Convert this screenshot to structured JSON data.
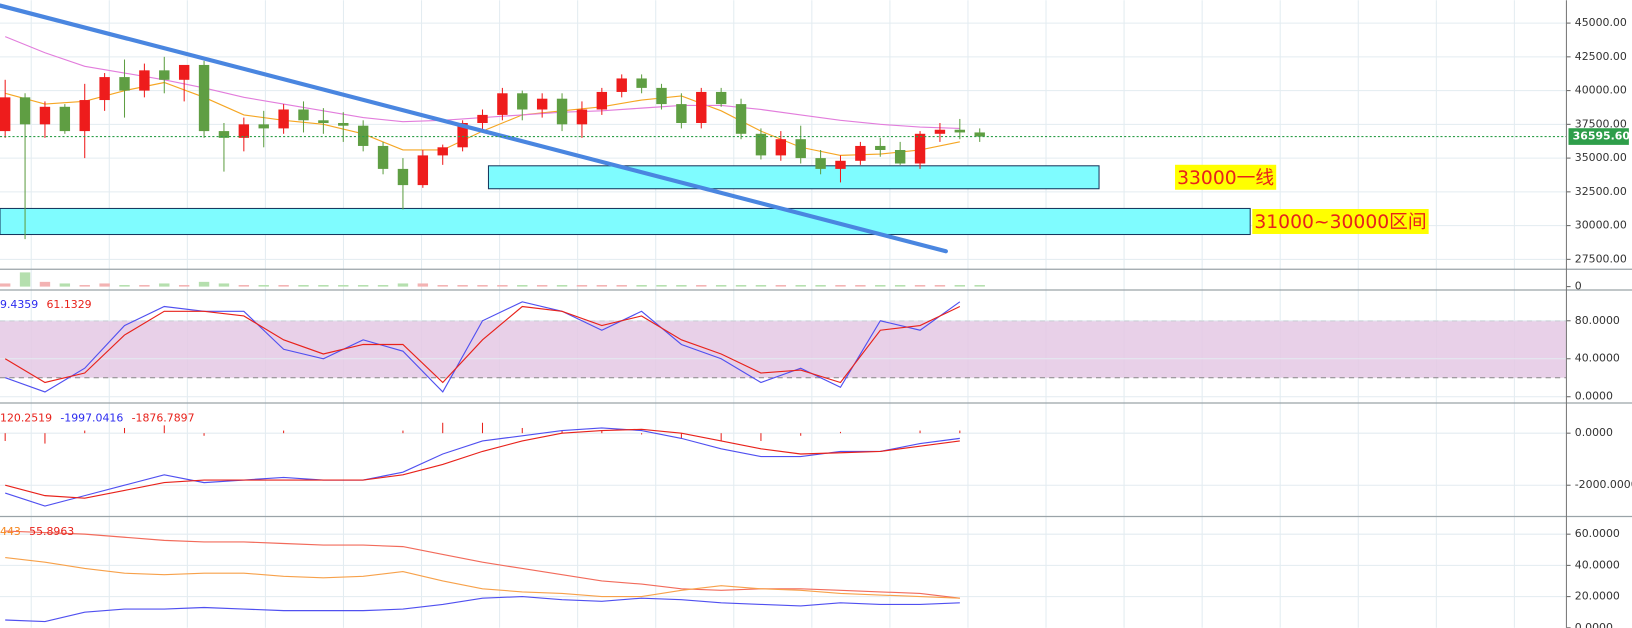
{
  "chart_data": [
    {
      "type": "candlestick",
      "xlim": [
        -0.26,
        78.5
      ],
      "ylim": [
        26806,
        46696
      ],
      "yticks": [
        {
          "value": 27500,
          "label": "27500.00"
        },
        {
          "value": 30000,
          "label": "30000.00"
        },
        {
          "value": 32500,
          "label": "32500.00"
        },
        {
          "value": 35000,
          "label": "35000.00"
        },
        {
          "value": 37500,
          "label": "37500.00"
        },
        {
          "value": 40000,
          "label": "40000.00"
        },
        {
          "value": 42500,
          "label": "42500.00"
        },
        {
          "value": 45000,
          "label": "45000.00"
        }
      ],
      "up_color": "#ee1c1c",
      "down_color": "#5f9e43",
      "candles": [
        [
          37000,
          40800,
          36500,
          39500
        ],
        [
          39500,
          39800,
          29000,
          37500
        ],
        [
          37500,
          39200,
          36500,
          38800
        ],
        [
          38800,
          39000,
          36800,
          37000
        ],
        [
          37000,
          40500,
          35000,
          39300
        ],
        [
          39300,
          41300,
          38500,
          41000
        ],
        [
          41000,
          42300,
          38000,
          40000
        ],
        [
          40000,
          42000,
          39500,
          41500
        ],
        [
          41500,
          42500,
          39800,
          40800
        ],
        [
          40800,
          41800,
          39200,
          41900
        ],
        [
          41900,
          42200,
          36500,
          37000
        ],
        [
          37000,
          37600,
          34000,
          36500
        ],
        [
          36500,
          38000,
          35500,
          37500
        ],
        [
          37500,
          38500,
          35800,
          37200
        ],
        [
          37200,
          39000,
          36800,
          38600
        ],
        [
          38600,
          39200,
          36900,
          37800
        ],
        [
          37800,
          38700,
          36800,
          37600
        ],
        [
          37600,
          38400,
          36200,
          37400
        ],
        [
          37400,
          37800,
          35500,
          35900
        ],
        [
          35900,
          36200,
          33800,
          34200
        ],
        [
          34200,
          35000,
          31200,
          33000
        ],
        [
          33000,
          35600,
          32800,
          35200
        ],
        [
          35200,
          36000,
          34500,
          35800
        ],
        [
          35800,
          37800,
          35500,
          37600
        ],
        [
          37600,
          38600,
          37000,
          38200
        ],
        [
          38200,
          40200,
          37800,
          39800
        ],
        [
          39800,
          40000,
          37800,
          38600
        ],
        [
          38600,
          39800,
          38000,
          39400
        ],
        [
          39400,
          39800,
          37000,
          37500
        ],
        [
          37500,
          39200,
          36500,
          38600
        ],
        [
          38600,
          40200,
          38200,
          39900
        ],
        [
          39900,
          41200,
          39500,
          40900
        ],
        [
          40900,
          41200,
          39800,
          40200
        ],
        [
          40200,
          40500,
          38600,
          39000
        ],
        [
          39000,
          39800,
          37200,
          37600
        ],
        [
          37600,
          40200,
          37200,
          39900
        ],
        [
          39900,
          40200,
          38800,
          39000
        ],
        [
          39000,
          39400,
          36400,
          36800
        ],
        [
          36800,
          37200,
          34900,
          35200
        ],
        [
          35200,
          37000,
          34800,
          36400
        ],
        [
          36400,
          37400,
          34600,
          35000
        ],
        [
          35000,
          35600,
          33800,
          34200
        ],
        [
          34200,
          35200,
          33200,
          34800
        ],
        [
          34800,
          36200,
          34500,
          35900
        ],
        [
          35900,
          36500,
          35100,
          35600
        ],
        [
          35600,
          36200,
          34500,
          34600
        ],
        [
          34600,
          37000,
          34200,
          36800
        ],
        [
          36800,
          37600,
          36200,
          37100
        ],
        [
          37100,
          37900,
          36400,
          36900
        ],
        [
          36900,
          37200,
          36200,
          36595.6
        ]
      ],
      "series": [
        {
          "color": "#f5a623",
          "x": [
            0,
            2,
            4,
            6,
            8,
            10,
            12,
            14,
            16,
            18,
            20,
            22,
            24,
            26,
            28,
            30,
            32,
            34,
            36,
            38,
            40,
            42,
            44,
            46,
            48
          ],
          "values": [
            39800,
            39000,
            39200,
            40000,
            40600,
            39500,
            38200,
            37800,
            37500,
            36800,
            35600,
            35600,
            37000,
            38200,
            38500,
            38800,
            39300,
            39600,
            38500,
            37000,
            35800,
            35200,
            35300,
            35600,
            36200
          ]
        },
        {
          "color": "#e27ddc",
          "x": [
            0,
            2,
            4,
            6,
            8,
            10,
            12,
            14,
            16,
            18,
            20,
            22,
            24,
            26,
            28,
            30,
            32,
            34,
            36,
            38,
            40,
            42,
            44,
            46,
            48
          ],
          "values": [
            44000,
            42800,
            41800,
            41300,
            40800,
            40200,
            39500,
            39000,
            38500,
            38000,
            37700,
            37800,
            38000,
            38200,
            38400,
            38500,
            38700,
            38900,
            38900,
            38600,
            38200,
            37800,
            37500,
            37300,
            37200
          ]
        }
      ],
      "last_price": {
        "value": 36595.6,
        "label": "36595.60"
      },
      "last_color": "#2e9e4a",
      "trend_line": {
        "x": [
          -0.26,
          47.3
        ],
        "y": [
          46300,
          28100
        ],
        "color": "#4a86e0"
      },
      "zones": [
        {
          "x": [
            24.3,
            55.0
          ],
          "y": [
            32730,
            34430
          ],
          "label": "33000一线"
        },
        {
          "x": [
            -0.26,
            62.6
          ],
          "y": [
            29340,
            31270
          ],
          "label": "31000~30000区间"
        }
      ],
      "zone_color": "#7ffcff",
      "note_color": "#e8221b",
      "note_bg": "#ffff00"
    },
    {
      "type": "bar",
      "xlim": [
        -0.26,
        78.5
      ],
      "ylim": [
        -1.2,
        10
      ],
      "yticks": [
        0
      ],
      "up_color": "#f3b3b3",
      "down_color": "#b5dfae",
      "values": [
        2,
        9,
        3,
        2,
        1,
        2,
        1,
        1,
        2,
        1,
        3,
        2,
        1,
        1,
        1,
        1,
        1,
        1,
        1,
        1,
        2,
        2,
        1,
        1,
        1,
        1,
        1,
        1,
        1,
        1,
        1,
        1,
        1,
        1,
        1,
        1,
        1,
        1,
        1,
        1,
        1,
        1,
        1,
        1,
        1,
        1,
        1,
        1,
        1,
        1
      ]
    },
    {
      "type": "line",
      "xlim": [
        -0.26,
        78.5
      ],
      "ylim": [
        -5.5,
        111.8
      ],
      "yticks": [
        {
          "value": 0,
          "label": "0.0000"
        },
        {
          "value": 40,
          "label": "40.0000"
        },
        {
          "value": 80,
          "label": "80.0000"
        }
      ],
      "band": [
        20,
        80
      ],
      "band_color": "#e4c8e4",
      "legend": [
        {
          "text": "9.4359",
          "color": "#2b2bef"
        },
        {
          "text": "61.1329",
          "color": "#e8221b"
        }
      ],
      "series": [
        {
          "color": "#5050f0",
          "x": [
            0,
            2,
            4,
            6,
            8,
            10,
            12,
            14,
            16,
            18,
            20,
            22,
            24,
            26,
            28,
            30,
            32,
            34,
            36,
            38,
            40,
            42,
            44,
            46,
            48
          ],
          "values": [
            20,
            5,
            30,
            75,
            95,
            90,
            90,
            50,
            40,
            60,
            48,
            5,
            80,
            100,
            90,
            70,
            90,
            55,
            40,
            15,
            30,
            10,
            80,
            70,
            100
          ]
        },
        {
          "color": "#e8221b",
          "x": [
            0,
            2,
            4,
            6,
            8,
            10,
            12,
            14,
            16,
            18,
            20,
            22,
            24,
            26,
            28,
            30,
            32,
            34,
            36,
            38,
            40,
            42,
            44,
            46,
            48
          ],
          "values": [
            40,
            15,
            25,
            65,
            90,
            90,
            85,
            60,
            45,
            55,
            55,
            15,
            60,
            95,
            90,
            75,
            85,
            60,
            45,
            25,
            28,
            15,
            70,
            75,
            95
          ]
        }
      ]
    },
    {
      "type": "line",
      "xlim": [
        -0.26,
        78.5
      ],
      "ylim": [
        -3160,
        1120
      ],
      "yticks": [
        {
          "value": 0,
          "label": "0.0000"
        },
        {
          "value": -2000,
          "label": "-2000.0000"
        }
      ],
      "legend": [
        {
          "text": "120.2519",
          "color": "#e8221b"
        },
        {
          "text": "-1997.0416",
          "color": "#2b2bef"
        },
        {
          "text": "-1876.7897",
          "color": "#e8221b"
        }
      ],
      "hist_color": "#e8221b",
      "histogram": {
        "x": [
          0,
          2,
          4,
          6,
          8,
          10,
          12,
          14,
          16,
          18,
          20,
          22,
          24,
          26,
          28,
          30,
          32,
          34,
          36,
          38,
          40,
          42,
          44,
          46,
          48
        ],
        "values": [
          -300,
          -400,
          100,
          200,
          300,
          -100,
          0,
          100,
          0,
          0,
          100,
          400,
          400,
          200,
          100,
          100,
          -50,
          -200,
          -300,
          -300,
          -100,
          50,
          0,
          100,
          100
        ]
      },
      "series": [
        {
          "color": "#5050f0",
          "x": [
            0,
            2,
            4,
            6,
            8,
            10,
            12,
            14,
            16,
            18,
            20,
            22,
            24,
            26,
            28,
            30,
            32,
            34,
            36,
            38,
            40,
            42,
            44,
            46,
            48
          ],
          "values": [
            -2300,
            -2800,
            -2400,
            -2000,
            -1600,
            -1900,
            -1800,
            -1700,
            -1800,
            -1800,
            -1500,
            -800,
            -300,
            -100,
            100,
            200,
            100,
            -200,
            -600,
            -900,
            -900,
            -700,
            -700,
            -400,
            -200
          ]
        },
        {
          "color": "#e8221b",
          "x": [
            0,
            2,
            4,
            6,
            8,
            10,
            12,
            14,
            16,
            18,
            20,
            22,
            24,
            26,
            28,
            30,
            32,
            34,
            36,
            38,
            40,
            42,
            44,
            46,
            48
          ],
          "values": [
            -2000,
            -2400,
            -2500,
            -2200,
            -1900,
            -1800,
            -1800,
            -1800,
            -1800,
            -1800,
            -1600,
            -1200,
            -700,
            -300,
            0,
            100,
            150,
            0,
            -300,
            -600,
            -800,
            -750,
            -700,
            -500,
            -300
          ]
        }
      ]
    },
    {
      "type": "line",
      "xlim": [
        -0.26,
        78.5
      ],
      "ylim": [
        0,
        70.7
      ],
      "yticks": [
        {
          "value": 0,
          "label": "0.0000"
        },
        {
          "value": 20,
          "label": "20.0000"
        },
        {
          "value": 40,
          "label": "40.0000"
        },
        {
          "value": 60,
          "label": "60.0000"
        }
      ],
      "legend": [
        {
          "text": "443",
          "color": "#f5861f"
        },
        {
          "text": "55.8963",
          "color": "#e8221b"
        }
      ],
      "series": [
        {
          "color": "#f26b5b",
          "x": [
            0,
            2,
            4,
            6,
            8,
            10,
            12,
            14,
            16,
            18,
            20,
            22,
            24,
            26,
            28,
            30,
            32,
            34,
            36,
            38,
            40,
            42,
            44,
            46,
            48
          ],
          "values": [
            62,
            61,
            60,
            58,
            56,
            55,
            55,
            54,
            53,
            53,
            52,
            47,
            42,
            38,
            34,
            30,
            28,
            25,
            24,
            25,
            25,
            24,
            23,
            22,
            19
          ]
        },
        {
          "color": "#f7a14a",
          "x": [
            0,
            2,
            4,
            6,
            8,
            10,
            12,
            14,
            16,
            18,
            20,
            22,
            24,
            26,
            28,
            30,
            32,
            34,
            36,
            38,
            40,
            42,
            44,
            46,
            48
          ],
          "values": [
            45,
            42,
            38,
            35,
            34,
            35,
            35,
            33,
            32,
            33,
            36,
            30,
            25,
            23,
            22,
            20,
            20,
            24,
            27,
            25,
            24,
            22,
            21,
            20,
            19
          ]
        },
        {
          "color": "#5050f0",
          "x": [
            0,
            2,
            4,
            6,
            8,
            10,
            12,
            14,
            16,
            18,
            20,
            22,
            24,
            26,
            28,
            30,
            32,
            34,
            36,
            38,
            40,
            42,
            44,
            46,
            48
          ],
          "values": [
            5,
            4,
            10,
            12,
            12,
            13,
            12,
            11,
            11,
            11,
            12,
            15,
            19,
            20,
            18,
            17,
            19,
            18,
            16,
            15,
            14,
            16,
            15,
            15,
            16
          ]
        }
      ]
    }
  ]
}
